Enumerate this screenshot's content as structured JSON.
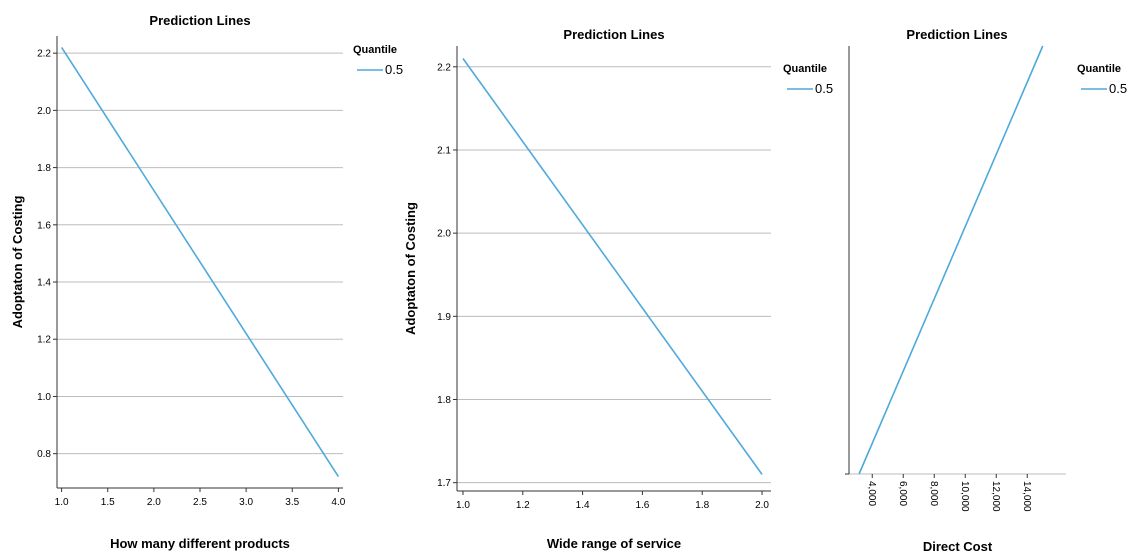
{
  "chart_data": [
    {
      "type": "line",
      "title": "Prediction Lines",
      "xlabel": "How many different products",
      "ylabel": "Adoptaton of Costing",
      "xlim": [
        0.95,
        4.05
      ],
      "ylim": [
        0.68,
        2.26
      ],
      "x_ticks": [
        "1.0",
        "1.5",
        "2.0",
        "2.5",
        "3.0",
        "3.5",
        "4.0"
      ],
      "x_tick_values": [
        1.0,
        1.5,
        2.0,
        2.5,
        3.0,
        3.5,
        4.0
      ],
      "y_ticks": [
        "0.8",
        "1.0",
        "1.2",
        "1.4",
        "1.6",
        "1.8",
        "2.0",
        "2.2"
      ],
      "y_tick_values": [
        0.8,
        1.0,
        1.2,
        1.4,
        1.6,
        1.8,
        2.0,
        2.2
      ],
      "grid": true,
      "legend": {
        "title": "Quantile",
        "placement": "right"
      },
      "series": [
        {
          "name": "0.5",
          "color": "#4fa9dc",
          "x": [
            1.0,
            4.0
          ],
          "y": [
            2.22,
            0.72
          ]
        }
      ]
    },
    {
      "type": "line",
      "title": "Prediction Lines",
      "xlabel": "Wide range of service",
      "ylabel": "Adoptaton of Costing",
      "xlim": [
        0.98,
        2.03
      ],
      "ylim": [
        1.69,
        2.225
      ],
      "x_ticks": [
        "1.0",
        "1.2",
        "1.4",
        "1.6",
        "1.8",
        "2.0"
      ],
      "x_tick_values": [
        1.0,
        1.2,
        1.4,
        1.6,
        1.8,
        2.0
      ],
      "y_ticks": [
        "1.7",
        "1.8",
        "1.9",
        "2.0",
        "2.1",
        "2.2"
      ],
      "y_tick_values": [
        1.7,
        1.8,
        1.9,
        2.0,
        2.1,
        2.2
      ],
      "grid": true,
      "legend": {
        "title": "Quantile",
        "placement": "right"
      },
      "series": [
        {
          "name": "0.5",
          "color": "#4fa9dc",
          "x": [
            1.0,
            2.0
          ],
          "y": [
            2.21,
            1.71
          ]
        }
      ]
    },
    {
      "type": "line",
      "title": "Prediction Lines",
      "xlabel": "Direct Cost",
      "ylabel": "",
      "xlim": [
        2500,
        16500
      ],
      "ylim": [
        0,
        100
      ],
      "x_ticks": [
        "4,000",
        "6,000",
        "8,000",
        "10,000",
        "12,000",
        "14,000"
      ],
      "x_tick_values": [
        4000,
        6000,
        8000,
        10000,
        12000,
        14000
      ],
      "y_ticks": [
        ""
      ],
      "y_tick_values": [
        0
      ],
      "x_tick_rotation": 90,
      "grid": true,
      "legend": {
        "title": "Quantile",
        "placement": "right"
      },
      "series": [
        {
          "name": "0.5",
          "color": "#4fa9dc",
          "x": [
            3150,
            15000
          ],
          "y": [
            0,
            100
          ]
        }
      ]
    }
  ]
}
